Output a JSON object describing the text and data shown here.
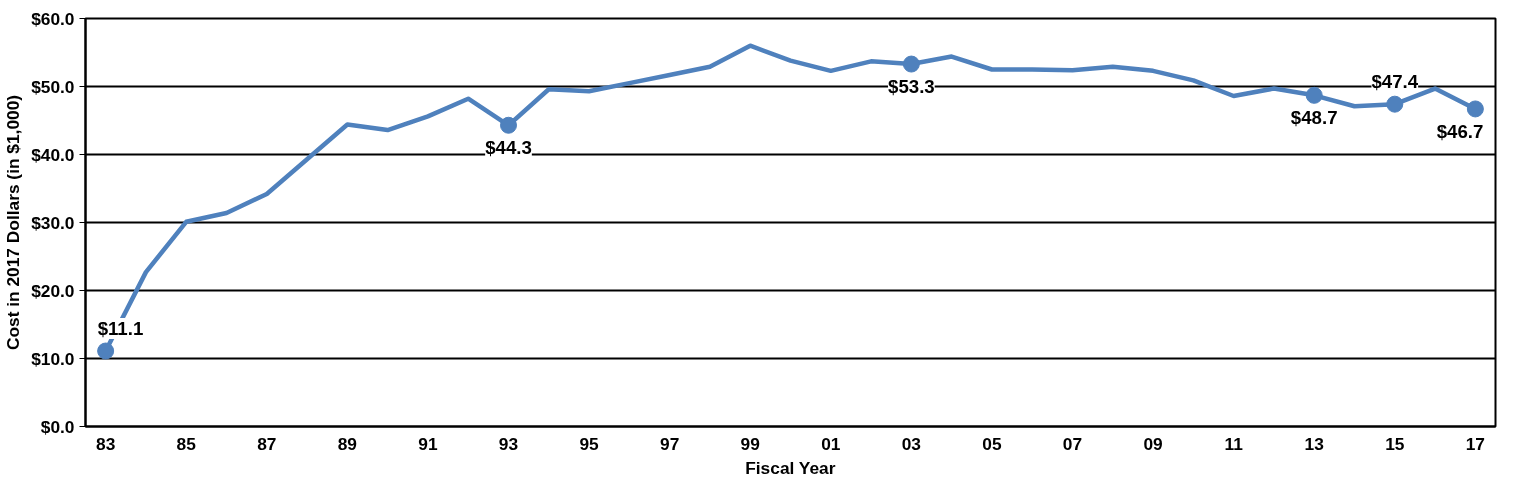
{
  "chart_data": {
    "type": "line",
    "xlabel": "Fiscal Year",
    "ylabel": "Cost in 2017 Dollars (in $1,000)",
    "x": [
      1983,
      1984,
      1985,
      1986,
      1987,
      1988,
      1989,
      1990,
      1991,
      1992,
      1993,
      1994,
      1995,
      1996,
      1997,
      1998,
      1999,
      2000,
      2001,
      2002,
      2003,
      2004,
      2005,
      2006,
      2007,
      2008,
      2009,
      2010,
      2011,
      2012,
      2013,
      2014,
      2015,
      2016,
      2017
    ],
    "series": [
      {
        "color": "#4f81bd",
        "values": [
          11.1,
          22.7,
          30.1,
          31.4,
          34.2,
          39.3,
          44.4,
          43.6,
          45.6,
          48.2,
          44.3,
          49.6,
          49.3,
          50.5,
          51.7,
          52.9,
          56.0,
          53.8,
          52.3,
          53.7,
          53.3,
          54.4,
          52.5,
          52.5,
          52.4,
          52.9,
          52.3,
          50.9,
          48.6,
          49.7,
          48.7,
          47.1,
          47.4,
          49.7,
          46.7
        ],
        "value_labels": [
          "$11.1",
          null,
          null,
          null,
          null,
          null,
          null,
          null,
          null,
          null,
          "$44.3",
          null,
          null,
          null,
          null,
          null,
          null,
          null,
          null,
          null,
          "$53.3",
          null,
          null,
          null,
          null,
          null,
          null,
          null,
          null,
          null,
          "$48.7",
          null,
          "$47.4",
          null,
          "$46.7"
        ]
      }
    ],
    "xlim": [
      1982.5,
      2017.5
    ],
    "xticks": [
      {
        "value": 1983,
        "label": "83"
      },
      {
        "value": 1985,
        "label": "85"
      },
      {
        "value": 1987,
        "label": "87"
      },
      {
        "value": 1989,
        "label": "89"
      },
      {
        "value": 1991,
        "label": "91"
      },
      {
        "value": 1993,
        "label": "93"
      },
      {
        "value": 1995,
        "label": "95"
      },
      {
        "value": 1997,
        "label": "97"
      },
      {
        "value": 1999,
        "label": "99"
      },
      {
        "value": 2001,
        "label": "01"
      },
      {
        "value": 2003,
        "label": "03"
      },
      {
        "value": 2005,
        "label": "05"
      },
      {
        "value": 2007,
        "label": "07"
      },
      {
        "value": 2009,
        "label": "09"
      },
      {
        "value": 2011,
        "label": "11"
      },
      {
        "value": 2013,
        "label": "13"
      },
      {
        "value": 2015,
        "label": "15"
      },
      {
        "value": 2017,
        "label": "17"
      }
    ],
    "ylim": [
      0,
      60
    ],
    "yticks": [
      {
        "value": 0,
        "label": "$0.0"
      },
      {
        "value": 10,
        "label": "$10.0"
      },
      {
        "value": 20,
        "label": "$20.0"
      },
      {
        "value": 30,
        "label": "$30.0"
      },
      {
        "value": 40,
        "label": "$40.0"
      },
      {
        "value": 50,
        "label": "$50.0"
      },
      {
        "value": 60,
        "label": "$60.0"
      }
    ],
    "grid": "y",
    "line_style": "solid"
  }
}
